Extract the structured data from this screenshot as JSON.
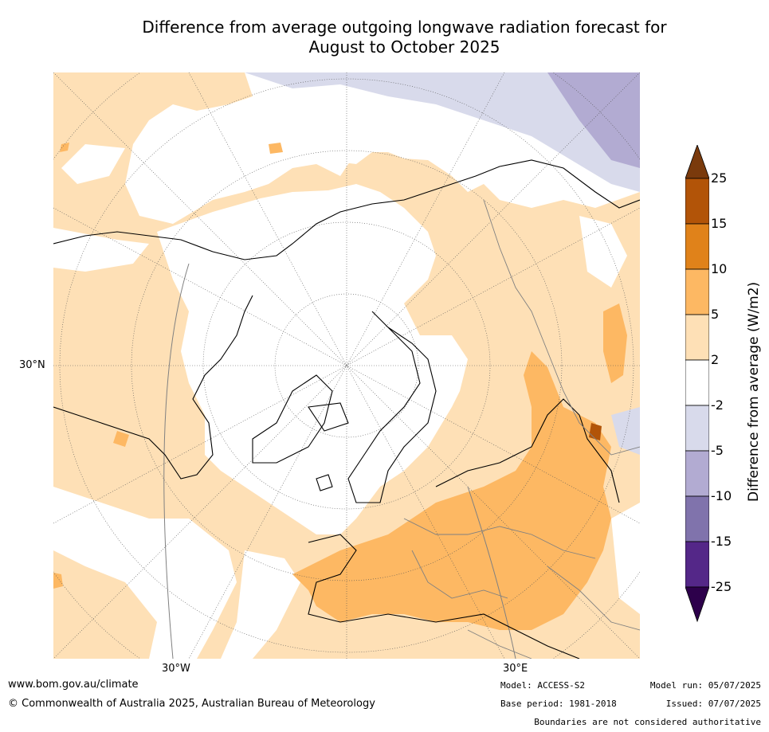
{
  "title": {
    "line1": "Difference from average outgoing longwave radiation forecast for",
    "line2": "August to October 2025"
  },
  "map": {
    "projection": "north-polar stereographic",
    "longitude_labels": [
      "30°W",
      "30°E"
    ],
    "latitude_labels": [
      "30°N"
    ],
    "coastline_color": "#000000",
    "border_color": "#808080",
    "grid_color": "#555555"
  },
  "colorbar": {
    "label": "Difference from average (W/m2)",
    "ticks": [
      "25",
      "15",
      "10",
      "5",
      "2",
      "-2",
      "-5",
      "-10",
      "-15",
      "-25"
    ],
    "colors": {
      "above_25": "#7a3a0c",
      "15_25": "#b25408",
      "10_15": "#e0821a",
      "5_10": "#fdb863",
      "2_5": "#fee0b6",
      "neutral": "#ffffff",
      "m2_m5": "#d8daeb",
      "m5_m10": "#b2abd2",
      "m10_m15": "#8073ac",
      "m15_m25": "#542788",
      "below_m25": "#2d004b"
    }
  },
  "footer": {
    "website": "www.bom.gov.au/climate",
    "copyright": "© Commonwealth of Australia 2025, Australian Bureau of Meteorology",
    "model": "Model: ACCESS-S2",
    "base_period": "Base period: 1981-2018",
    "model_run": "Model run: 05/07/2025",
    "issued": "Issued: 07/07/2025",
    "disclaimer": "Boundaries are not considered authoritative"
  }
}
